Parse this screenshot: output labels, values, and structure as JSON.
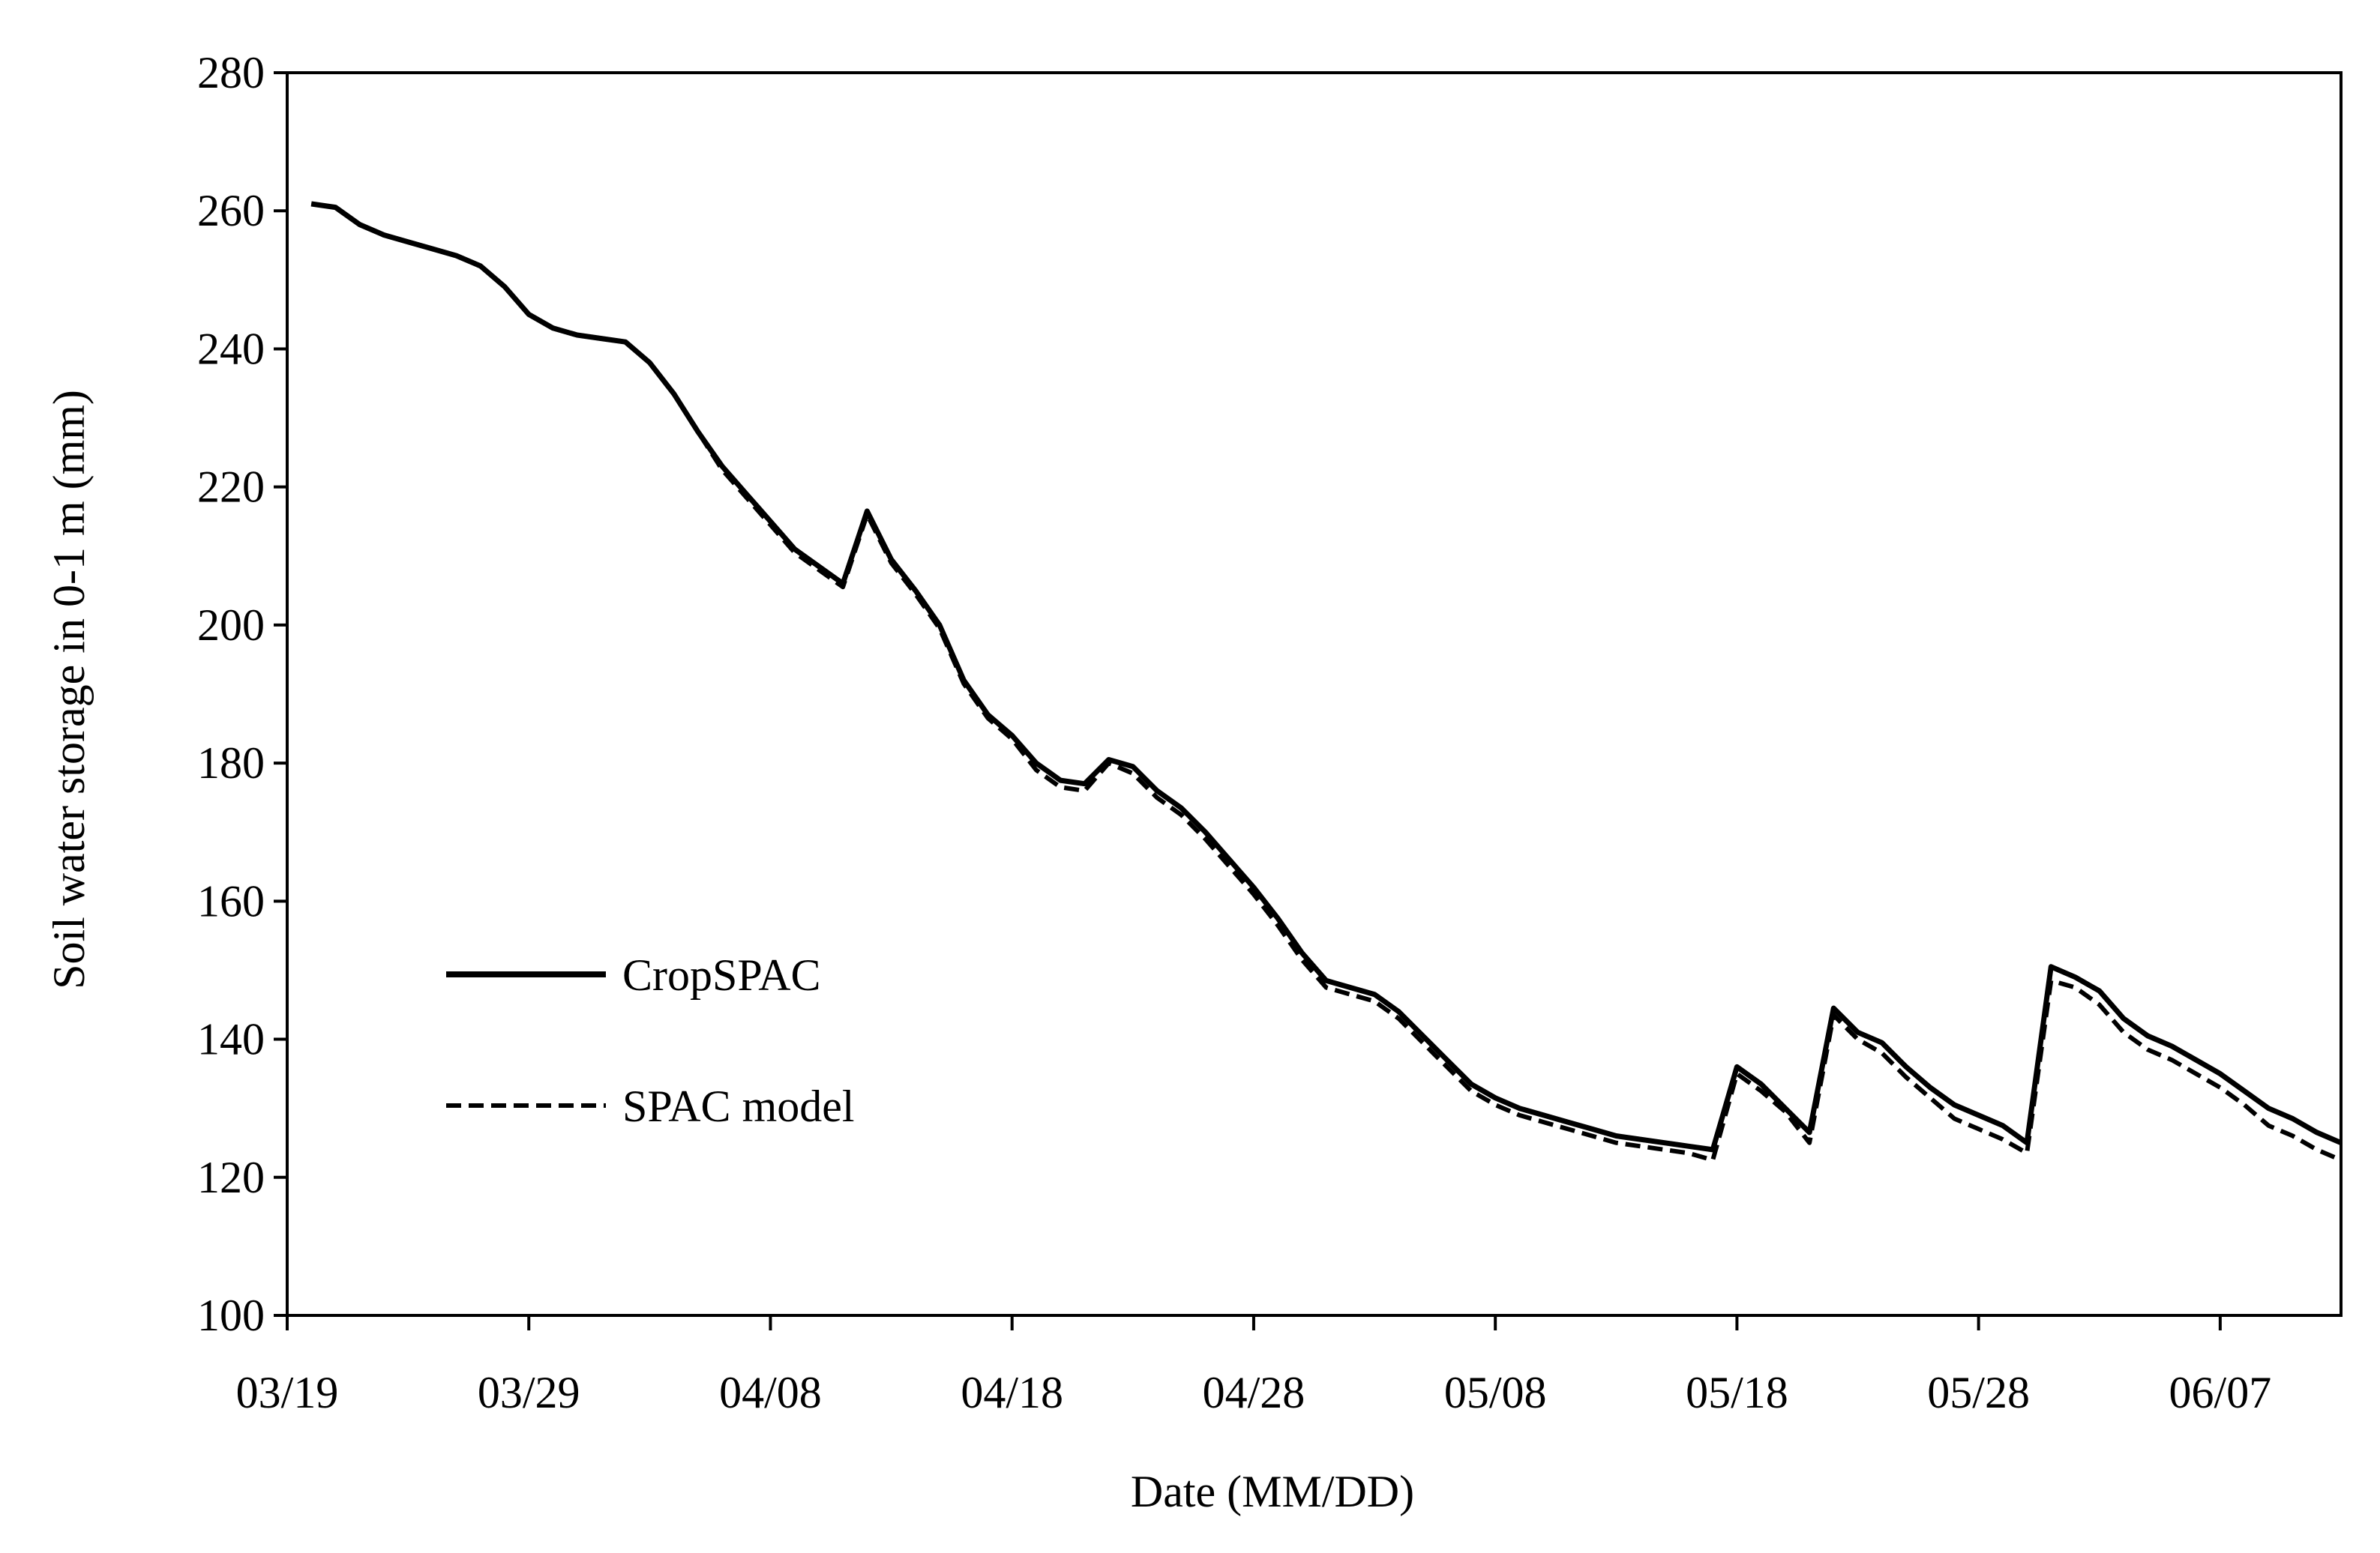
{
  "chart_data": {
    "type": "line",
    "title": "",
    "xlabel": "Date (MM/DD)",
    "ylabel": "Soil water storage in 0-1 m (mm)",
    "x_ticks": [
      "03/19",
      "03/29",
      "04/08",
      "04/18",
      "04/28",
      "05/08",
      "05/18",
      "05/28",
      "06/07"
    ],
    "y_ticks": [
      "100",
      "120",
      "140",
      "160",
      "180",
      "200",
      "220",
      "240",
      "260",
      "280"
    ],
    "ylim": [
      100,
      280
    ],
    "xlim": [
      "03/19",
      "06/12"
    ],
    "grid": false,
    "legend_position": "lower-left",
    "series": [
      {
        "name": "CropSPAC",
        "style": "solid",
        "color": "#000000",
        "points": [
          [
            "03/20",
            261
          ],
          [
            "03/21",
            260.5
          ],
          [
            "03/22",
            258
          ],
          [
            "03/23",
            256.5
          ],
          [
            "03/24",
            255.5
          ],
          [
            "03/25",
            254.5
          ],
          [
            "03/26",
            253.5
          ],
          [
            "03/27",
            252
          ],
          [
            "03/28",
            249
          ],
          [
            "03/29",
            245
          ],
          [
            "03/30",
            243
          ],
          [
            "03/31",
            242
          ],
          [
            "04/01",
            241.5
          ],
          [
            "04/02",
            241
          ],
          [
            "04/03",
            238
          ],
          [
            "04/04",
            233.5
          ],
          [
            "04/05",
            228
          ],
          [
            "04/06",
            223
          ],
          [
            "04/07",
            219
          ],
          [
            "04/08",
            215
          ],
          [
            "04/09",
            211
          ],
          [
            "04/10",
            208.5
          ],
          [
            "04/11",
            206
          ],
          [
            "04/12",
            216.5
          ],
          [
            "04/13",
            209.5
          ],
          [
            "04/14",
            205
          ],
          [
            "04/15",
            200
          ],
          [
            "04/16",
            192
          ],
          [
            "04/17",
            187
          ],
          [
            "04/18",
            184
          ],
          [
            "04/19",
            180
          ],
          [
            "04/20",
            177.5
          ],
          [
            "04/21",
            177
          ],
          [
            "04/22",
            180.5
          ],
          [
            "04/23",
            179.5
          ],
          [
            "04/24",
            176
          ],
          [
            "04/25",
            173.5
          ],
          [
            "04/26",
            170
          ],
          [
            "04/27",
            166
          ],
          [
            "04/28",
            162
          ],
          [
            "04/29",
            157.5
          ],
          [
            "04/30",
            152.5
          ],
          [
            "05/01",
            148.5
          ],
          [
            "05/02",
            147.5
          ],
          [
            "05/03",
            146.5
          ],
          [
            "05/04",
            144
          ],
          [
            "05/05",
            140.5
          ],
          [
            "05/06",
            137
          ],
          [
            "05/07",
            133.5
          ],
          [
            "05/08",
            131.5
          ],
          [
            "05/09",
            130
          ],
          [
            "05/10",
            129
          ],
          [
            "05/11",
            128
          ],
          [
            "05/12",
            127
          ],
          [
            "05/13",
            126
          ],
          [
            "05/14",
            125.5
          ],
          [
            "05/15",
            125
          ],
          [
            "05/16",
            124.5
          ],
          [
            "05/17",
            124
          ],
          [
            "05/18",
            136
          ],
          [
            "05/19",
            133.5
          ],
          [
            "05/20",
            130
          ],
          [
            "05/21",
            126.5
          ],
          [
            "05/22",
            144.5
          ],
          [
            "05/23",
            141
          ],
          [
            "05/24",
            139.5
          ],
          [
            "05/25",
            136
          ],
          [
            "05/26",
            133
          ],
          [
            "05/27",
            130.5
          ],
          [
            "05/28",
            129
          ],
          [
            "05/29",
            127.5
          ],
          [
            "05/30",
            125
          ],
          [
            "05/31",
            150.5
          ],
          [
            "06/01",
            149
          ],
          [
            "06/02",
            147
          ],
          [
            "06/03",
            143
          ],
          [
            "06/04",
            140.5
          ],
          [
            "06/05",
            139
          ],
          [
            "06/06",
            137
          ],
          [
            "06/07",
            135
          ],
          [
            "06/08",
            132.5
          ],
          [
            "06/09",
            130
          ],
          [
            "06/10",
            128.5
          ],
          [
            "06/11",
            126.5
          ],
          [
            "06/12",
            125
          ]
        ]
      },
      {
        "name": "SPAC model",
        "style": "dashed",
        "color": "#000000",
        "points": [
          [
            "03/20",
            261
          ],
          [
            "03/21",
            260.5
          ],
          [
            "03/22",
            258
          ],
          [
            "03/23",
            256.5
          ],
          [
            "03/24",
            255.5
          ],
          [
            "03/25",
            254.5
          ],
          [
            "03/26",
            253.5
          ],
          [
            "03/27",
            252
          ],
          [
            "03/28",
            249
          ],
          [
            "03/29",
            245
          ],
          [
            "03/30",
            243
          ],
          [
            "03/31",
            242
          ],
          [
            "04/01",
            241.5
          ],
          [
            "04/02",
            241
          ],
          [
            "04/03",
            238
          ],
          [
            "04/04",
            233.5
          ],
          [
            "04/05",
            228
          ],
          [
            "04/06",
            222.5
          ],
          [
            "04/07",
            218.5
          ],
          [
            "04/08",
            214.5
          ],
          [
            "04/09",
            210.5
          ],
          [
            "04/10",
            208
          ],
          [
            "04/11",
            205.5
          ],
          [
            "04/12",
            216
          ],
          [
            "04/13",
            209
          ],
          [
            "04/14",
            204.5
          ],
          [
            "04/15",
            199.5
          ],
          [
            "04/16",
            191.5
          ],
          [
            "04/17",
            186.5
          ],
          [
            "04/18",
            183.5
          ],
          [
            "04/19",
            179
          ],
          [
            "04/20",
            176.5
          ],
          [
            "04/21",
            176
          ],
          [
            "04/22",
            180
          ],
          [
            "04/23",
            178.5
          ],
          [
            "04/24",
            175
          ],
          [
            "04/25",
            172.5
          ],
          [
            "04/26",
            169
          ],
          [
            "04/27",
            165
          ],
          [
            "04/28",
            161
          ],
          [
            "04/29",
            156.5
          ],
          [
            "04/30",
            151.5
          ],
          [
            "05/01",
            147.5
          ],
          [
            "05/02",
            146.5
          ],
          [
            "05/03",
            145.5
          ],
          [
            "05/04",
            143
          ],
          [
            "05/05",
            139.5
          ],
          [
            "05/06",
            136
          ],
          [
            "05/07",
            132.5
          ],
          [
            "05/08",
            130.5
          ],
          [
            "05/09",
            129
          ],
          [
            "05/10",
            128
          ],
          [
            "05/11",
            127
          ],
          [
            "05/12",
            126
          ],
          [
            "05/13",
            125
          ],
          [
            "05/14",
            124.5
          ],
          [
            "05/15",
            124
          ],
          [
            "05/16",
            123.5
          ],
          [
            "05/17",
            122.5
          ],
          [
            "05/18",
            135
          ],
          [
            "05/19",
            132.5
          ],
          [
            "05/20",
            129.5
          ],
          [
            "05/21",
            125
          ],
          [
            "05/22",
            143.5
          ],
          [
            "05/23",
            140
          ],
          [
            "05/24",
            138
          ],
          [
            "05/25",
            134.5
          ],
          [
            "05/26",
            131.5
          ],
          [
            "05/27",
            128.5
          ],
          [
            "05/28",
            127
          ],
          [
            "05/29",
            125.5
          ],
          [
            "05/30",
            123.5
          ],
          [
            "05/31",
            148.5
          ],
          [
            "06/01",
            147.5
          ],
          [
            "06/02",
            145
          ],
          [
            "06/03",
            141
          ],
          [
            "06/04",
            138.5
          ],
          [
            "06/05",
            137
          ],
          [
            "06/06",
            135
          ],
          [
            "06/07",
            133
          ],
          [
            "06/08",
            130.5
          ],
          [
            "06/09",
            127.5
          ],
          [
            "06/10",
            126
          ],
          [
            "06/11",
            124
          ],
          [
            "06/12",
            122.5
          ]
        ]
      }
    ]
  }
}
